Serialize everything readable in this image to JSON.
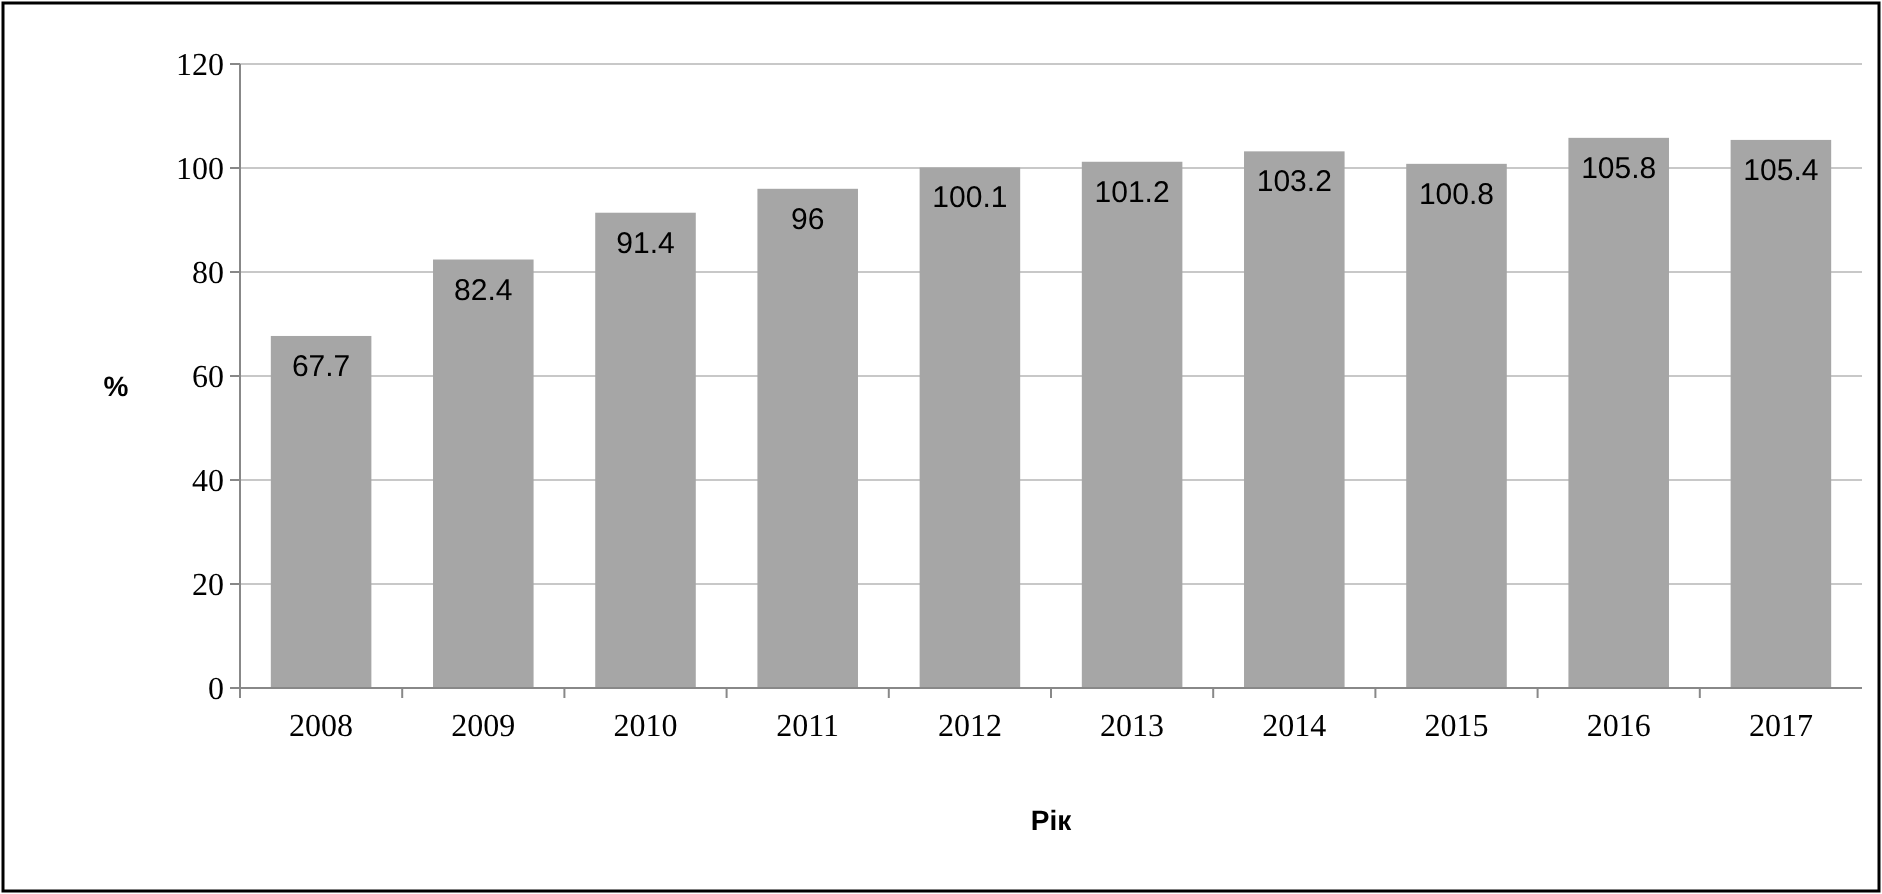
{
  "chart_data": {
    "type": "bar",
    "xlabel": "Рік",
    "ylabel": "%",
    "categories": [
      "2008",
      "2009",
      "2010",
      "2011",
      "2012",
      "2013",
      "2014",
      "2015",
      "2016",
      "2017"
    ],
    "values": [
      67.7,
      82.4,
      91.4,
      96,
      100.1,
      101.2,
      103.2,
      100.8,
      105.8,
      105.4
    ],
    "color": "#a6a6a6",
    "ylim": [
      0,
      120
    ],
    "yticks": [
      0,
      20,
      40,
      60,
      80,
      100,
      120
    ],
    "grid": "y",
    "data_labels": true
  }
}
